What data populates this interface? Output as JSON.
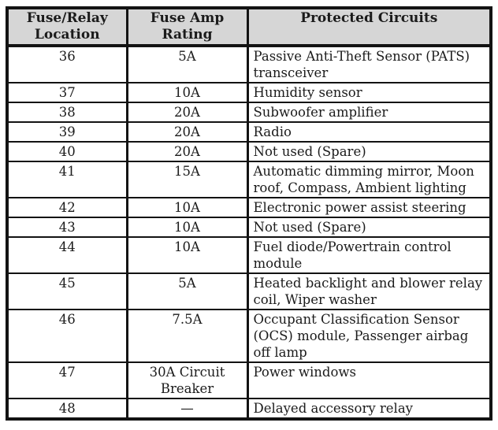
{
  "document": {
    "type": "fuse-relay-chart",
    "colors": {
      "header_bg": "#d6d6d6",
      "border": "#131313",
      "text": "#1b1b1b",
      "page_bg": "#ffffff"
    }
  },
  "table": {
    "headers": {
      "location": "Fuse/Relay Location",
      "amp": "Fuse Amp Rating",
      "circuits": "Protected Circuits"
    },
    "rows": [
      {
        "location": "36",
        "amp": "5A",
        "circuits": "Passive Anti-Theft Sensor (PATS) transceiver"
      },
      {
        "location": "37",
        "amp": "10A",
        "circuits": "Humidity sensor"
      },
      {
        "location": "38",
        "amp": "20A",
        "circuits": "Subwoofer amplifier"
      },
      {
        "location": "39",
        "amp": "20A",
        "circuits": "Radio"
      },
      {
        "location": "40",
        "amp": "20A",
        "circuits": "Not used (Spare)"
      },
      {
        "location": "41",
        "amp": "15A",
        "circuits": "Automatic dimming mirror, Moon roof, Compass, Ambient lighting"
      },
      {
        "location": "42",
        "amp": "10A",
        "circuits": "Electronic power assist steering"
      },
      {
        "location": "43",
        "amp": "10A",
        "circuits": "Not used (Spare)"
      },
      {
        "location": "44",
        "amp": "10A",
        "circuits": "Fuel diode/Powertrain control module"
      },
      {
        "location": "45",
        "amp": "5A",
        "circuits": "Heated backlight and blower relay coil, Wiper washer"
      },
      {
        "location": "46",
        "amp": "7.5A",
        "circuits": "Occupant Classification Sensor (OCS) module, Passenger airbag off lamp"
      },
      {
        "location": "47",
        "amp": "30A Circuit Breaker",
        "circuits": "Power windows"
      },
      {
        "location": "48",
        "amp": "—",
        "circuits": "Delayed accessory relay"
      }
    ]
  }
}
